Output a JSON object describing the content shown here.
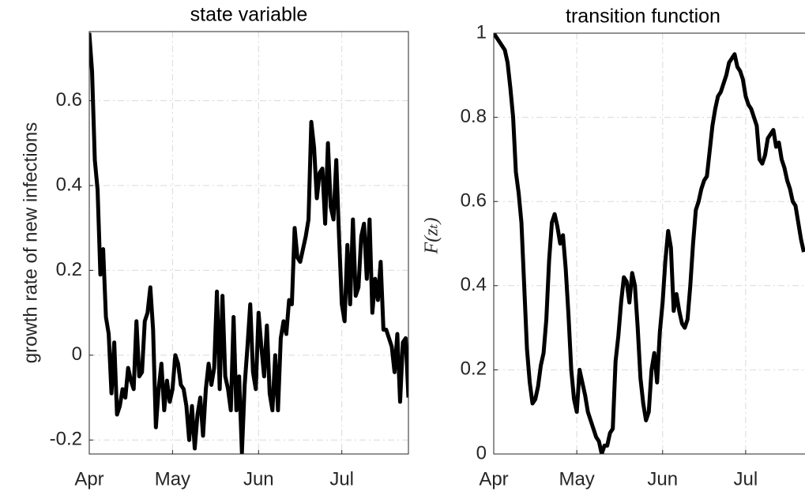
{
  "chart_data": [
    {
      "type": "line",
      "title": "state variable",
      "ylabel": "growth rate of new infections",
      "x": [
        0,
        1,
        2,
        3,
        4,
        5,
        6,
        7,
        8,
        9,
        10,
        11,
        12,
        13,
        14,
        15,
        16,
        17,
        18,
        19,
        20,
        21,
        22,
        23,
        24,
        25,
        26,
        27,
        28,
        29,
        30,
        31,
        32,
        33,
        34,
        35,
        36,
        37,
        38,
        39,
        40,
        41,
        42,
        43,
        44,
        45,
        46,
        47,
        48,
        49,
        50,
        51,
        52,
        53,
        54,
        55,
        56,
        57,
        58,
        59,
        60,
        61,
        62,
        63,
        64,
        65,
        66,
        67,
        68,
        69,
        70,
        71,
        72,
        73,
        74,
        75,
        76,
        77,
        78,
        79,
        80,
        81,
        82,
        83,
        84,
        85,
        86,
        87,
        88,
        89,
        90,
        91,
        92,
        93,
        94,
        95,
        96,
        97,
        98,
        99,
        100,
        101,
        102,
        103,
        104,
        105,
        106,
        107,
        108,
        109,
        110,
        111,
        112,
        113,
        114,
        115
      ],
      "values": [
        0.76,
        0.67,
        0.46,
        0.39,
        0.19,
        0.25,
        0.09,
        0.05,
        -0.09,
        0.03,
        -0.14,
        -0.12,
        -0.08,
        -0.1,
        -0.03,
        -0.06,
        -0.08,
        0.08,
        -0.05,
        -0.04,
        0.08,
        0.1,
        0.16,
        0.06,
        -0.17,
        -0.08,
        -0.02,
        -0.13,
        -0.06,
        -0.11,
        -0.08,
        0.0,
        -0.02,
        -0.07,
        -0.08,
        -0.12,
        -0.2,
        -0.12,
        -0.22,
        -0.14,
        -0.1,
        -0.19,
        -0.08,
        -0.02,
        -0.07,
        -0.03,
        0.15,
        -0.08,
        0.14,
        -0.05,
        -0.08,
        -0.13,
        0.09,
        -0.13,
        -0.05,
        -0.23,
        -0.07,
        0.02,
        0.12,
        -0.04,
        -0.08,
        0.1,
        0.02,
        -0.05,
        0.07,
        -0.09,
        -0.13,
        0.0,
        -0.13,
        0.04,
        0.08,
        0.05,
        0.13,
        0.12,
        0.3,
        0.23,
        0.22,
        0.25,
        0.28,
        0.32,
        0.55,
        0.49,
        0.37,
        0.43,
        0.44,
        0.31,
        0.5,
        0.35,
        0.32,
        0.46,
        0.28,
        0.12,
        0.08,
        0.26,
        0.12,
        0.32,
        0.14,
        0.16,
        0.28,
        0.31,
        0.18,
        0.32,
        0.1,
        0.18,
        0.13,
        0.22,
        0.06,
        0.06,
        0.04,
        0.02,
        -0.04,
        0.05,
        -0.11,
        0.03,
        0.04,
        -0.1
      ],
      "color": "#000000",
      "xlim": [
        0,
        115
      ],
      "xticks": [
        {
          "value": 0,
          "label": "Apr"
        },
        {
          "value": 30,
          "label": "May"
        },
        {
          "value": 61,
          "label": "Jun"
        },
        {
          "value": 91,
          "label": "Jul"
        }
      ],
      "ylim": [
        -0.233,
        0.763
      ],
      "yticks": [
        -0.2,
        0,
        0.2,
        0.4,
        0.6
      ],
      "grid": true
    },
    {
      "type": "line",
      "title": "transition function",
      "ylabel": "F(zₜ)",
      "x": [
        0,
        1,
        2,
        3,
        4,
        5,
        6,
        7,
        8,
        9,
        10,
        11,
        12,
        13,
        14,
        15,
        16,
        17,
        18,
        19,
        20,
        21,
        22,
        23,
        24,
        25,
        26,
        27,
        28,
        29,
        30,
        31,
        32,
        33,
        34,
        35,
        36,
        37,
        38,
        39,
        40,
        41,
        42,
        43,
        44,
        45,
        46,
        47,
        48,
        49,
        50,
        51,
        52,
        53,
        54,
        55,
        56,
        57,
        58,
        59,
        60,
        61,
        62,
        63,
        64,
        65,
        66,
        67,
        68,
        69,
        70,
        71,
        72,
        73,
        74,
        75,
        76,
        77,
        78,
        79,
        80,
        81,
        82,
        83,
        84,
        85,
        86,
        87,
        88,
        89,
        90,
        91,
        92,
        93,
        94,
        95,
        96,
        97,
        98,
        99,
        100,
        101,
        102,
        103,
        104,
        105,
        106,
        107,
        108,
        109,
        110,
        111,
        112
      ],
      "values": [
        1.0,
        0.99,
        0.98,
        0.97,
        0.96,
        0.93,
        0.87,
        0.8,
        0.67,
        0.62,
        0.55,
        0.4,
        0.25,
        0.17,
        0.12,
        0.13,
        0.16,
        0.21,
        0.24,
        0.32,
        0.46,
        0.55,
        0.57,
        0.54,
        0.5,
        0.52,
        0.44,
        0.33,
        0.2,
        0.13,
        0.1,
        0.2,
        0.17,
        0.14,
        0.1,
        0.08,
        0.06,
        0.04,
        0.03,
        0.0,
        0.02,
        0.02,
        0.05,
        0.06,
        0.22,
        0.28,
        0.36,
        0.42,
        0.41,
        0.36,
        0.43,
        0.4,
        0.3,
        0.18,
        0.12,
        0.08,
        0.1,
        0.2,
        0.24,
        0.17,
        0.29,
        0.36,
        0.46,
        0.53,
        0.49,
        0.34,
        0.38,
        0.34,
        0.31,
        0.3,
        0.32,
        0.4,
        0.5,
        0.58,
        0.6,
        0.63,
        0.65,
        0.66,
        0.72,
        0.78,
        0.82,
        0.85,
        0.86,
        0.88,
        0.9,
        0.93,
        0.94,
        0.95,
        0.92,
        0.91,
        0.89,
        0.85,
        0.83,
        0.82,
        0.8,
        0.78,
        0.7,
        0.69,
        0.71,
        0.75,
        0.76,
        0.77,
        0.73,
        0.74,
        0.7,
        0.68,
        0.65,
        0.63,
        0.6,
        0.59,
        0.55,
        0.51,
        0.48
      ],
      "color": "#000000",
      "xlim": [
        0,
        115
      ],
      "xticks": [
        {
          "value": 0,
          "label": "Apr"
        },
        {
          "value": 30,
          "label": "May"
        },
        {
          "value": 61,
          "label": "Jun"
        },
        {
          "value": 91,
          "label": "Jul"
        }
      ],
      "ylim": [
        0,
        1
      ],
      "yticks": [
        0,
        0.2,
        0.4,
        0.6,
        0.8,
        1
      ],
      "grid": true
    }
  ]
}
